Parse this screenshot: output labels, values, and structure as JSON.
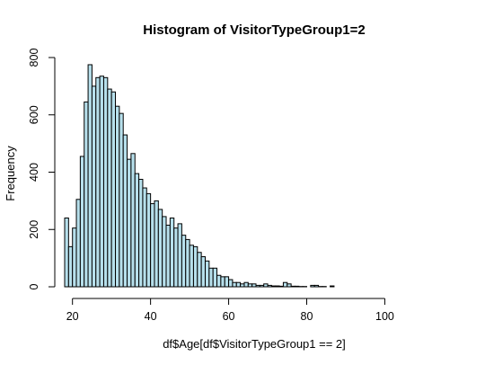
{
  "chart_data": {
    "type": "bar",
    "title": "Histogram of VisitorTypeGroup1=2",
    "xlabel": "df$Age[df$VisitorTypeGroup1 == 2]",
    "ylabel": "Frequency",
    "xlim": [
      18,
      116
    ],
    "ylim": [
      0,
      800
    ],
    "x_ticks": [
      20,
      40,
      60,
      80,
      100
    ],
    "y_ticks": [
      0,
      200,
      400,
      600,
      800
    ],
    "bin_width": 1,
    "bin_start": 18,
    "bar_color": "#b7e0ec",
    "values": [
      240,
      140,
      205,
      305,
      455,
      645,
      775,
      700,
      730,
      735,
      730,
      690,
      680,
      630,
      605,
      530,
      445,
      465,
      395,
      375,
      345,
      325,
      290,
      300,
      270,
      245,
      215,
      240,
      205,
      220,
      180,
      165,
      145,
      140,
      120,
      105,
      90,
      65,
      65,
      40,
      35,
      35,
      25,
      15,
      15,
      10,
      15,
      10,
      10,
      5,
      5,
      10,
      5,
      3,
      3,
      2,
      15,
      10,
      2,
      2,
      1,
      1,
      0,
      5,
      5,
      1,
      1,
      0,
      3,
      0,
      0,
      0,
      0,
      0,
      0,
      0,
      0,
      0,
      0,
      0,
      0,
      0,
      0,
      0,
      0,
      0,
      0,
      0,
      0,
      0,
      0,
      0,
      0,
      0,
      0,
      0,
      0,
      0
    ]
  }
}
